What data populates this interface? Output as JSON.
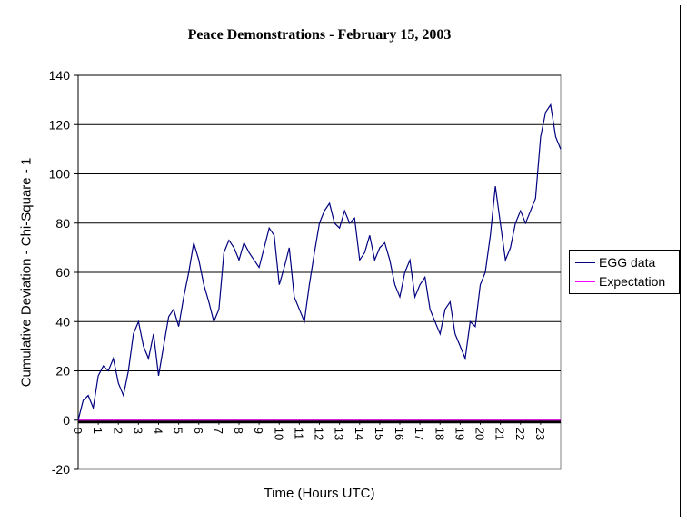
{
  "chart_data": {
    "type": "line",
    "title": "Peace Demonstrations - February 15, 2003",
    "xlabel": "Time (Hours UTC)",
    "ylabel": "Cumulative Deviation - Chi-Square - 1",
    "xlim": [
      0,
      24
    ],
    "ylim": [
      -20,
      140
    ],
    "yticks": [
      -20,
      0,
      20,
      40,
      60,
      80,
      100,
      120,
      140
    ],
    "xticks": [
      "0",
      "1",
      "2",
      "3",
      "4",
      "5",
      "6",
      "7",
      "8",
      "9",
      "10",
      "11",
      "12",
      "13",
      "14",
      "15",
      "16",
      "17",
      "18",
      "19",
      "20",
      "21",
      "22",
      "23"
    ],
    "grid": "horizontal major gridlines",
    "legend_placement": "right",
    "colors": {
      "egg": "#000080",
      "expectation": "#ff00ff"
    },
    "series": [
      {
        "name": "EGG data",
        "x_step_hours": 0.25,
        "values": [
          0,
          8,
          10,
          5,
          18,
          22,
          20,
          25,
          15,
          10,
          20,
          35,
          40,
          30,
          25,
          35,
          18,
          30,
          42,
          45,
          38,
          50,
          60,
          72,
          65,
          55,
          48,
          40,
          45,
          68,
          73,
          70,
          65,
          72,
          68,
          65,
          62,
          70,
          78,
          75,
          55,
          62,
          70,
          50,
          45,
          40,
          55,
          68,
          80,
          85,
          88,
          80,
          78,
          85,
          80,
          82,
          65,
          68,
          75,
          65,
          70,
          72,
          65,
          55,
          50,
          60,
          65,
          50,
          55,
          58,
          45,
          40,
          35,
          45,
          48,
          35,
          30,
          25,
          40,
          38,
          55,
          60,
          75,
          95,
          80,
          65,
          70,
          80,
          85,
          80,
          85,
          90,
          115,
          125,
          128,
          115,
          110
        ]
      },
      {
        "name": "Expectation",
        "values": [
          0,
          0
        ]
      }
    ]
  }
}
